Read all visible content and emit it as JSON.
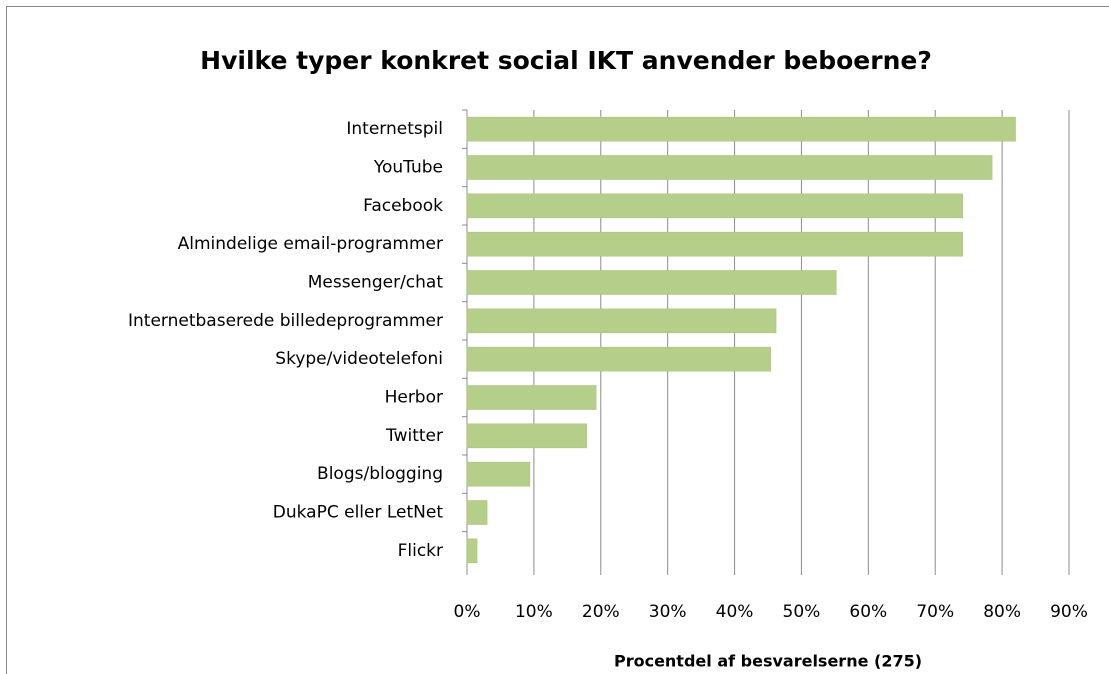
{
  "chart_data": {
    "type": "bar",
    "orientation": "horizontal",
    "title": "Hvilke typer konkret social IKT anvender beboerne?",
    "x_axis_label": "Procentdel af besvarelserne (275)",
    "categories": [
      "Internetspil",
      "YouTube",
      "Facebook",
      "Almindelige email-programmer",
      "Messenger/chat",
      "Internetbaserede billedeprogrammer",
      "Skype/videotelefoni",
      "Herbor",
      "Twitter",
      "Blogs/blogging",
      "DukaPC eller LetNet",
      "Flickr"
    ],
    "values": [
      82,
      78.5,
      74.1,
      74.1,
      55.2,
      46.2,
      45.4,
      19.3,
      17.9,
      9.4,
      3.0,
      1.5
    ],
    "color": "#b5cf8a",
    "xlim": [
      0,
      90
    ],
    "xticks": [
      {
        "value": 0,
        "label": "0%"
      },
      {
        "value": 10,
        "label": "10%"
      },
      {
        "value": 20,
        "label": "20%"
      },
      {
        "value": 30,
        "label": "30%"
      },
      {
        "value": 40,
        "label": "40%"
      },
      {
        "value": 50,
        "label": "50%"
      },
      {
        "value": 60,
        "label": "60%"
      },
      {
        "value": 70,
        "label": "70%"
      },
      {
        "value": 80,
        "label": "80%"
      },
      {
        "value": 90,
        "label": "90%"
      }
    ],
    "grid": true
  }
}
